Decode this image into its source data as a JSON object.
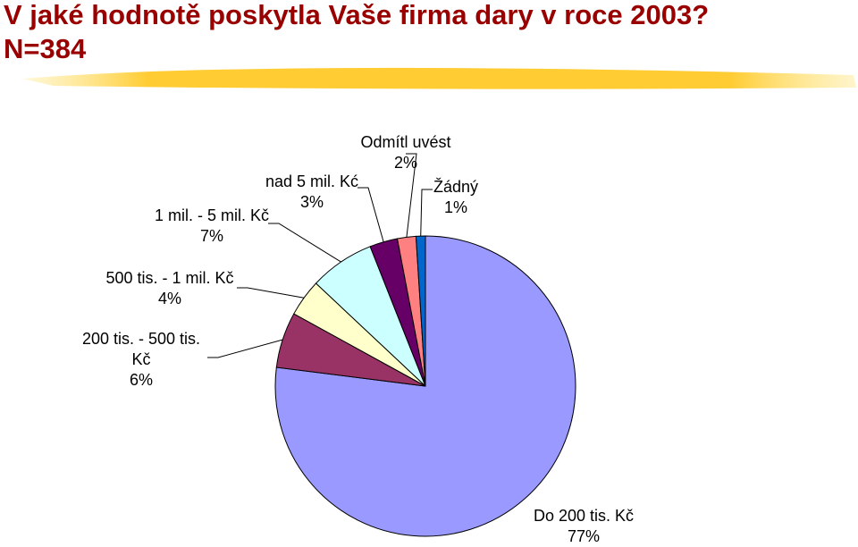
{
  "chart_data": {
    "type": "pie",
    "title": "V jaké hodnotě poskytla Vaše firma dary v roce 2003? N=384",
    "categories": [
      "Do 200 tis. Kč",
      "200 tis. - 500 tis. Kč",
      "500 tis. - 1 mil. Kč",
      "1 mil. - 5 mil. Kč",
      "nad 5 mil. Kć",
      "Odmítl uvést",
      "Žádný"
    ],
    "values": [
      77,
      6,
      4,
      7,
      3,
      2,
      1
    ],
    "value_labels": [
      "77%",
      "6%",
      "4%",
      "7%",
      "3%",
      "2%",
      "1%"
    ],
    "colors": [
      "#9999ff",
      "#993366",
      "#ffffcc",
      "#ccffff",
      "#660066",
      "#ff8080",
      "#0066cc"
    ]
  }
}
